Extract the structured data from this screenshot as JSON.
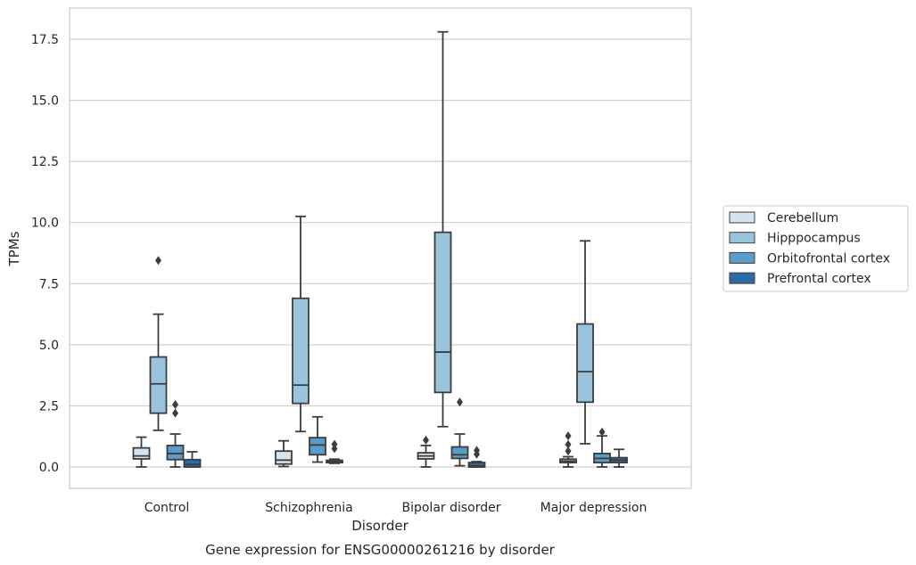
{
  "caption": "Gene expression for ENSG00000261216 by disorder",
  "chart_data": {
    "type": "box",
    "xlabel": "Disorder",
    "ylabel": "TPMs",
    "ylim": [
      -0.85,
      18.65
    ],
    "yticks": [
      "0.0",
      "2.5",
      "5.0",
      "7.5",
      "10.0",
      "12.5",
      "15.0",
      "17.5"
    ],
    "ytick_values": [
      0,
      2.5,
      5,
      7.5,
      10,
      12.5,
      15,
      17.5
    ],
    "grid": "horizontal",
    "legend_position": "right",
    "categories": [
      "Control",
      "Schizophrenia",
      "Bipolar disorder",
      "Major depression"
    ],
    "series": [
      {
        "name": "Cerebellum",
        "color": "#d4e3f0",
        "boxes": [
          {
            "whisker_low": 0.0,
            "q1": 0.33,
            "median": 0.45,
            "q3": 0.78,
            "whisker_high": 1.22,
            "outliers": []
          },
          {
            "whisker_low": 0.02,
            "q1": 0.12,
            "median": 0.28,
            "q3": 0.65,
            "whisker_high": 1.07,
            "outliers": []
          },
          {
            "whisker_low": 0.0,
            "q1": 0.33,
            "median": 0.45,
            "q3": 0.58,
            "whisker_high": 0.88,
            "outliers": [
              1.1
            ]
          },
          {
            "whisker_low": 0.0,
            "q1": 0.18,
            "median": 0.24,
            "q3": 0.32,
            "whisker_high": 0.42,
            "outliers": [
              0.65,
              0.92,
              1.27
            ]
          }
        ]
      },
      {
        "name": "Hipppocampus",
        "color": "#9ac3dc",
        "boxes": [
          {
            "whisker_low": 1.5,
            "q1": 2.2,
            "median": 3.4,
            "q3": 4.5,
            "whisker_high": 6.25,
            "outliers": [
              8.45
            ]
          },
          {
            "whisker_low": 1.45,
            "q1": 2.6,
            "median": 3.35,
            "q3": 6.9,
            "whisker_high": 10.25,
            "outliers": []
          },
          {
            "whisker_low": 1.65,
            "q1": 3.05,
            "median": 4.7,
            "q3": 9.6,
            "whisker_high": 17.8,
            "outliers": []
          },
          {
            "whisker_low": 0.95,
            "q1": 2.65,
            "median": 3.9,
            "q3": 5.85,
            "whisker_high": 9.25,
            "outliers": []
          }
        ]
      },
      {
        "name": "Orbitofrontal cortex",
        "color": "#5a9bc7",
        "boxes": [
          {
            "whisker_low": 0.0,
            "q1": 0.3,
            "median": 0.55,
            "q3": 0.88,
            "whisker_high": 1.35,
            "outliers": [
              2.2,
              2.55
            ]
          },
          {
            "whisker_low": 0.2,
            "q1": 0.5,
            "median": 0.9,
            "q3": 1.2,
            "whisker_high": 2.05,
            "outliers": []
          },
          {
            "whisker_low": 0.05,
            "q1": 0.35,
            "median": 0.5,
            "q3": 0.82,
            "whisker_high": 1.35,
            "outliers": [
              2.65
            ]
          },
          {
            "whisker_low": 0.0,
            "q1": 0.18,
            "median": 0.35,
            "q3": 0.55,
            "whisker_high": 1.27,
            "outliers": [
              1.43
            ]
          }
        ]
      },
      {
        "name": "Prefrontal cortex",
        "color": "#2c6ba8",
        "boxes": [
          {
            "whisker_low": 0.0,
            "q1": 0.0,
            "median": 0.1,
            "q3": 0.3,
            "whisker_high": 0.62,
            "outliers": []
          },
          {
            "whisker_low": 0.15,
            "q1": 0.18,
            "median": 0.22,
            "q3": 0.27,
            "whisker_high": 0.32,
            "outliers": [
              0.75,
              0.93
            ]
          },
          {
            "whisker_low": 0.0,
            "q1": 0.0,
            "median": 0.05,
            "q3": 0.18,
            "whisker_high": 0.22,
            "outliers": [
              0.52,
              0.68
            ]
          },
          {
            "whisker_low": 0.0,
            "q1": 0.18,
            "median": 0.28,
            "q3": 0.38,
            "whisker_high": 0.72,
            "outliers": []
          }
        ]
      }
    ]
  }
}
